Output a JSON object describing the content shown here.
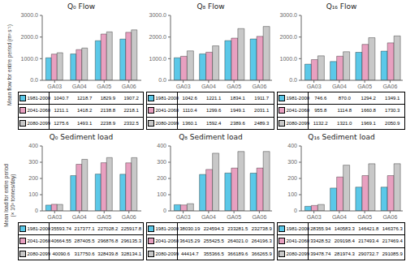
{
  "chart_data": [
    {
      "type": "bar",
      "title": "Q₀ Flow",
      "y_label": "Mean flow for entire period (m³ s⁻¹)",
      "categories": [
        "GA03",
        "GA04",
        "GA05",
        "GA06"
      ],
      "series": [
        {
          "name": "1981-2000",
          "color": "#5bc8e8",
          "values": [
            1040.7,
            1218.7,
            1829.9,
            1907.2
          ],
          "value_labels": [
            "1040.7",
            "1218.7",
            "1829.9",
            "1907.2"
          ]
        },
        {
          "name": "2041-2060",
          "color": "#e8a0c0",
          "values": [
            1211.1,
            1418.2,
            2138.8,
            2218.1
          ],
          "value_labels": [
            "1211.1",
            "1418.2",
            "2138.8",
            "2218.1"
          ]
        },
        {
          "name": "2080-2099",
          "color": "#c8c8c8",
          "values": [
            1275.6,
            1493.1,
            2238.9,
            2332.5
          ],
          "value_labels": [
            "1275.6",
            "1493.1",
            "2238.9",
            "2332.5"
          ]
        }
      ],
      "ylim": [
        0,
        3000
      ],
      "yticks": [
        {
          "value": 0,
          "label": "0.0"
        },
        {
          "value": 1000,
          "label": "1000.0"
        },
        {
          "value": 2000,
          "label": "2000.0"
        },
        {
          "value": 3000,
          "label": "3000.0"
        }
      ],
      "grid": false
    },
    {
      "type": "bar",
      "title": "Q₈ Flow",
      "categories": [
        "GA03",
        "GA04",
        "GA05",
        "GA06"
      ],
      "series": [
        {
          "name": "1981-2000",
          "color": "#5bc8e8",
          "values": [
            1042.6,
            1221.1,
            1834.1,
            1911.7
          ],
          "value_labels": [
            "1042.6",
            "1221.1",
            "1834.1",
            "1911.7"
          ]
        },
        {
          "name": "2041-2060",
          "color": "#e8a0c0",
          "values": [
            1110.4,
            1299.6,
            1949.1,
            2031.1
          ],
          "value_labels": [
            "1110.4",
            "1299.6",
            "1949.1",
            "2031.1"
          ]
        },
        {
          "name": "2080-2099",
          "color": "#c8c8c8",
          "values": [
            1360.1,
            1592.4,
            2389.6,
            2489.3
          ],
          "value_labels": [
            "1360.1",
            "1592.4",
            "2389.6",
            "2489.3"
          ]
        }
      ],
      "ylim": [
        0,
        3000
      ],
      "yticks": [
        {
          "value": 0,
          "label": "0.0"
        },
        {
          "value": 1000,
          "label": "1000.0"
        },
        {
          "value": 2000,
          "label": "2000.0"
        },
        {
          "value": 3000,
          "label": "3000.0"
        }
      ],
      "grid": false
    },
    {
      "type": "bar",
      "title": "Q₁₆ Flow",
      "categories": [
        "GA03",
        "GA04",
        "GA05",
        "GA06"
      ],
      "series": [
        {
          "name": "1981-2000",
          "color": "#5bc8e8",
          "values": [
            746.6,
            870.0,
            1294.2,
            1349.1
          ],
          "value_labels": [
            "746.6",
            "870.0",
            "1294.2",
            "1349.1"
          ]
        },
        {
          "name": "2041-2060",
          "color": "#e8a0c0",
          "values": [
            955.8,
            1114.8,
            1660.8,
            1730.3
          ],
          "value_labels": [
            "955.8",
            "1114.8",
            "1660.8",
            "1730.3"
          ]
        },
        {
          "name": "2080-2099",
          "color": "#c8c8c8",
          "values": [
            1132.2,
            1321.0,
            1969.1,
            2050.9
          ],
          "value_labels": [
            "1132.2",
            "1321.0",
            "1969.1",
            "2050.9"
          ]
        }
      ],
      "ylim": [
        0,
        3000
      ],
      "yticks": [
        {
          "value": 0,
          "label": "0.0"
        },
        {
          "value": 1000,
          "label": "1000.0"
        },
        {
          "value": 2000,
          "label": "2000.0"
        },
        {
          "value": 3000,
          "label": "3000.0"
        }
      ],
      "grid": false
    },
    {
      "type": "bar",
      "title": "Q₀ Sediment load",
      "y_label": "Mean load for entire period\n(× 10³ tonnes/day)",
      "categories": [
        "GA03",
        "GA04",
        "GA05",
        "GA06"
      ],
      "series": [
        {
          "name": "1981-2000",
          "color": "#5bc8e8",
          "values": [
            35.59374,
            217.3771,
            227.0282,
            225.9178
          ],
          "value_labels": [
            "35593.74",
            "217377.1",
            "227028.2",
            "225917.8"
          ]
        },
        {
          "name": "2041-2060",
          "color": "#e8a0c0",
          "values": [
            40.66455,
            287.4055,
            296.8768,
            296.1353
          ],
          "value_labels": [
            "40664.55",
            "287405.5",
            "296876.8",
            "296135.3"
          ]
        },
        {
          "name": "2080-2099",
          "color": "#c8c8c8",
          "values": [
            40.0906,
            317.7506,
            328.4398,
            328.1341
          ],
          "value_labels": [
            "40090.6",
            "317750.6",
            "328439.8",
            "328134.1"
          ]
        }
      ],
      "ylim": [
        0,
        400
      ],
      "yticks": [
        0,
        100,
        200,
        300,
        400
      ],
      "grid": false
    },
    {
      "type": "bar",
      "title": "Q₈ Sediment load",
      "categories": [
        "GA03",
        "GA04",
        "GA05",
        "GA06"
      ],
      "series": [
        {
          "name": "1981-2000",
          "color": "#5bc8e8",
          "values": [
            38.03019,
            224.5943,
            233.2815,
            232.7389
          ],
          "value_labels": [
            "38030.19",
            "224594.3",
            "233281.5",
            "232738.9"
          ]
        },
        {
          "name": "2041-2060",
          "color": "#e8a0c0",
          "values": [
            36.41529,
            255.4255,
            264.021,
            264.1963
          ],
          "value_labels": [
            "36415.29",
            "255425.5",
            "264021.0",
            "264196.3"
          ]
        },
        {
          "name": "2080-2099",
          "color": "#c8c8c8",
          "values": [
            44.4147,
            355.3665,
            366.1896,
            366.2659
          ],
          "value_labels": [
            "44414.7",
            "355366.5",
            "366189.6",
            "366265.9"
          ]
        }
      ],
      "ylim": [
        0,
        400
      ],
      "yticks": [
        0,
        100,
        200,
        300,
        400
      ],
      "grid": false
    },
    {
      "type": "bar",
      "title": "Q₁₆ Sediment load",
      "categories": [
        "GA03",
        "GA04",
        "GA05",
        "GA06"
      ],
      "series": [
        {
          "name": "1981-2000",
          "color": "#5bc8e8",
          "values": [
            28.35594,
            140.5833,
            146.4218,
            146.3763
          ],
          "value_labels": [
            "28355.94",
            "140583.3",
            "146421.8",
            "146376.3"
          ]
        },
        {
          "name": "2041-2060",
          "color": "#e8a0c0",
          "values": [
            33.42852,
            209.1984,
            217.4934,
            217.4694
          ],
          "value_labels": [
            "33428.52",
            "209198.4",
            "217493.4",
            "217469.4"
          ]
        },
        {
          "name": "2080-2099",
          "color": "#c8c8c8",
          "values": [
            39.47874,
            281.9743,
            290.7327,
            291.0859
          ],
          "value_labels": [
            "39478.74",
            "281974.3",
            "290732.7",
            "291085.9"
          ]
        }
      ],
      "ylim": [
        0,
        400
      ],
      "yticks": [
        0,
        100,
        200,
        300,
        400
      ],
      "grid": false
    }
  ]
}
